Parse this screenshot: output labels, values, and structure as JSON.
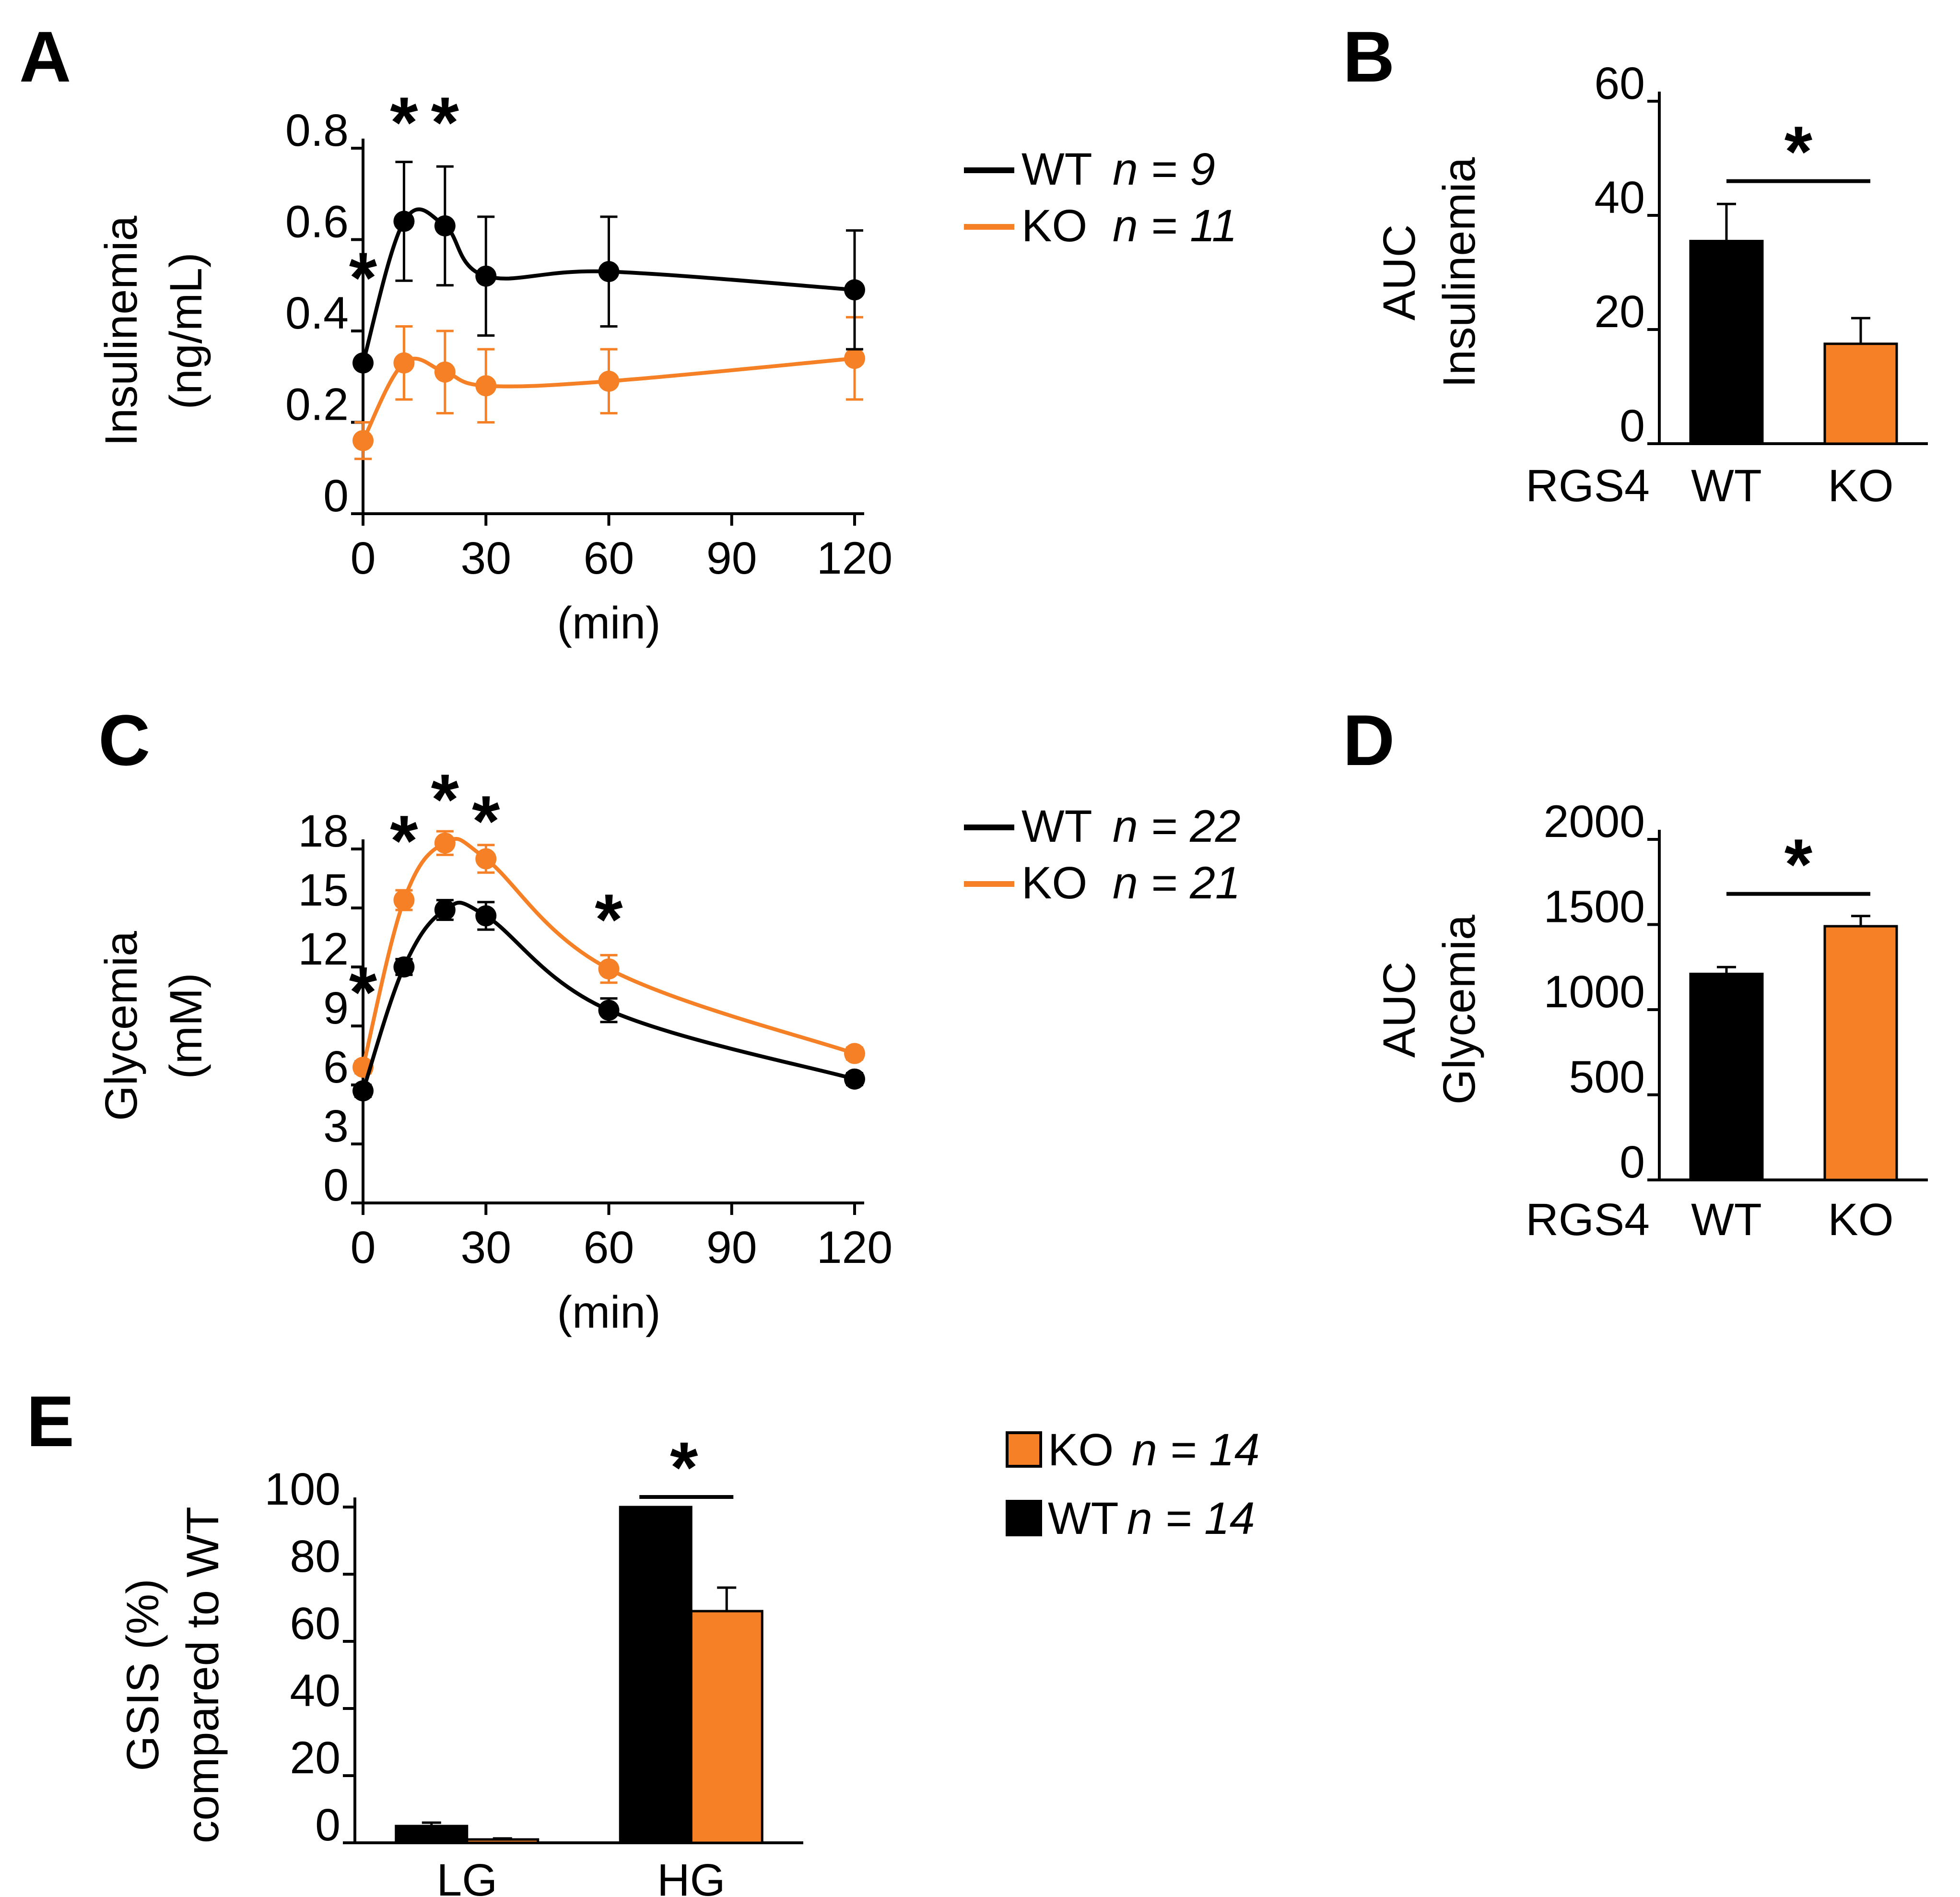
{
  "colors": {
    "wt": "#000000",
    "ko": "#f58025"
  },
  "chart_data": [
    {
      "id": "A",
      "panel_label": "A",
      "type": "line",
      "xlabel": "(min)",
      "ylabel_lines": [
        "Insulinemia",
        "(ng/mL)"
      ],
      "xlim": [
        0,
        120
      ],
      "ylim": [
        0,
        0.8
      ],
      "xticks": [
        0,
        30,
        60,
        90,
        120
      ],
      "xtick_labels": [
        "0",
        "30",
        "60",
        "90",
        "120"
      ],
      "yticks": [
        0,
        0.2,
        0.4,
        0.6,
        0.8
      ],
      "ytick_labels": [
        "0",
        "0.2",
        "0.4",
        "0.6",
        "0.8"
      ],
      "x": [
        0,
        10,
        20,
        30,
        60,
        120
      ],
      "series": [
        {
          "name": "WT",
          "n_label": "n = 9",
          "color": "#000000",
          "values": [
            0.33,
            0.64,
            0.63,
            0.52,
            0.53,
            0.49
          ],
          "errors": [
            0.0,
            0.13,
            0.13,
            0.13,
            0.12,
            0.13
          ]
        },
        {
          "name": "KO",
          "n_label": "n = 11",
          "color": "#f58025",
          "values": [
            0.16,
            0.33,
            0.31,
            0.28,
            0.29,
            0.34
          ],
          "errors": [
            0.04,
            0.08,
            0.09,
            0.08,
            0.07,
            0.09
          ]
        }
      ],
      "annotations": [
        {
          "text": "*",
          "x": 0,
          "y": 0.52
        },
        {
          "text": "*",
          "x": 10,
          "y": 0.86
        },
        {
          "text": "*",
          "x": 20,
          "y": 0.86
        }
      ]
    },
    {
      "id": "B",
      "panel_label": "B",
      "type": "bar",
      "xlabel": "",
      "ylabel_lines": [
        "AUC",
        "Insulinemia"
      ],
      "row_label": "RGS4",
      "categories": [
        "WT",
        "KO"
      ],
      "ylim": [
        0,
        60
      ],
      "yticks": [
        0,
        20,
        40,
        60
      ],
      "ytick_labels": [
        "0",
        "20",
        "40",
        "60"
      ],
      "values": [
        35.5,
        17.5
      ],
      "errors": [
        6.5,
        4.5
      ],
      "bar_colors": [
        "#000000",
        "#f58025"
      ],
      "significance": {
        "text": "*",
        "between": [
          "WT",
          "KO"
        ],
        "y": 46
      }
    },
    {
      "id": "C",
      "panel_label": "C",
      "type": "line",
      "xlabel": "(min)",
      "ylabel_lines": [
        "Glycemia",
        "(mM)"
      ],
      "xlim": [
        0,
        120
      ],
      "ylim": [
        0,
        18
      ],
      "xticks": [
        0,
        30,
        60,
        90,
        120
      ],
      "xtick_labels": [
        "0",
        "30",
        "60",
        "90",
        "120"
      ],
      "yticks": [
        0,
        3,
        6,
        9,
        12,
        15,
        18
      ],
      "ytick_labels": [
        "0",
        "3",
        "6",
        "9",
        "12",
        "15",
        "18"
      ],
      "x": [
        0,
        10,
        20,
        30,
        60,
        120
      ],
      "series": [
        {
          "name": "WT",
          "n_label": "n = 22",
          "color": "#000000",
          "values": [
            5.7,
            12.0,
            14.9,
            14.6,
            9.8,
            6.3
          ],
          "errors": [
            0.3,
            0.4,
            0.5,
            0.7,
            0.6,
            0.3
          ]
        },
        {
          "name": "KO",
          "n_label": "n = 21",
          "color": "#f58025",
          "values": [
            6.9,
            15.4,
            18.3,
            17.5,
            11.9,
            7.6
          ],
          "errors": [
            0.3,
            0.5,
            0.6,
            0.7,
            0.7,
            0.3
          ]
        }
      ],
      "annotations": [
        {
          "text": "*",
          "x": 0,
          "y": 10.8
        },
        {
          "text": "*",
          "x": 10,
          "y": 18.5
        },
        {
          "text": "*",
          "x": 20,
          "y": 20.6
        },
        {
          "text": "*",
          "x": 30,
          "y": 19.5
        },
        {
          "text": "*",
          "x": 60,
          "y": 14.5
        }
      ]
    },
    {
      "id": "D",
      "panel_label": "D",
      "type": "bar",
      "xlabel": "",
      "ylabel_lines": [
        "AUC",
        "Glycemia"
      ],
      "row_label": "RGS4",
      "categories": [
        "WT",
        "KO"
      ],
      "ylim": [
        0,
        2000
      ],
      "yticks": [
        0,
        500,
        1000,
        1500,
        2000
      ],
      "ytick_labels": [
        "0",
        "500",
        "1000",
        "1500",
        "2000"
      ],
      "values": [
        1210,
        1490
      ],
      "errors": [
        40,
        60
      ],
      "bar_colors": [
        "#000000",
        "#f58025"
      ],
      "significance": {
        "text": "*",
        "between": [
          "WT",
          "KO"
        ],
        "y": 1680
      }
    },
    {
      "id": "E",
      "panel_label": "E",
      "type": "bar",
      "xlabel": "",
      "ylabel_lines": [
        "GSIS (%)",
        "compared to WT"
      ],
      "categories": [
        "LG",
        "HG"
      ],
      "ylim": [
        0,
        100
      ],
      "yticks": [
        0,
        20,
        40,
        60,
        80,
        100
      ],
      "ytick_labels": [
        "0",
        "20",
        "40",
        "60",
        "80",
        "100"
      ],
      "series": [
        {
          "name": "WT",
          "n_label": "n = 14",
          "color": "#000000",
          "values": [
            5,
            100
          ],
          "errors": [
            1,
            0
          ]
        },
        {
          "name": "KO",
          "n_label": "n = 14",
          "color": "#f58025",
          "values": [
            1,
            69
          ],
          "errors": [
            0.3,
            7
          ]
        }
      ],
      "legend_order": [
        "KO",
        "WT"
      ],
      "significance": [
        {
          "text": "*",
          "category": "HG",
          "y": 103
        }
      ]
    }
  ]
}
